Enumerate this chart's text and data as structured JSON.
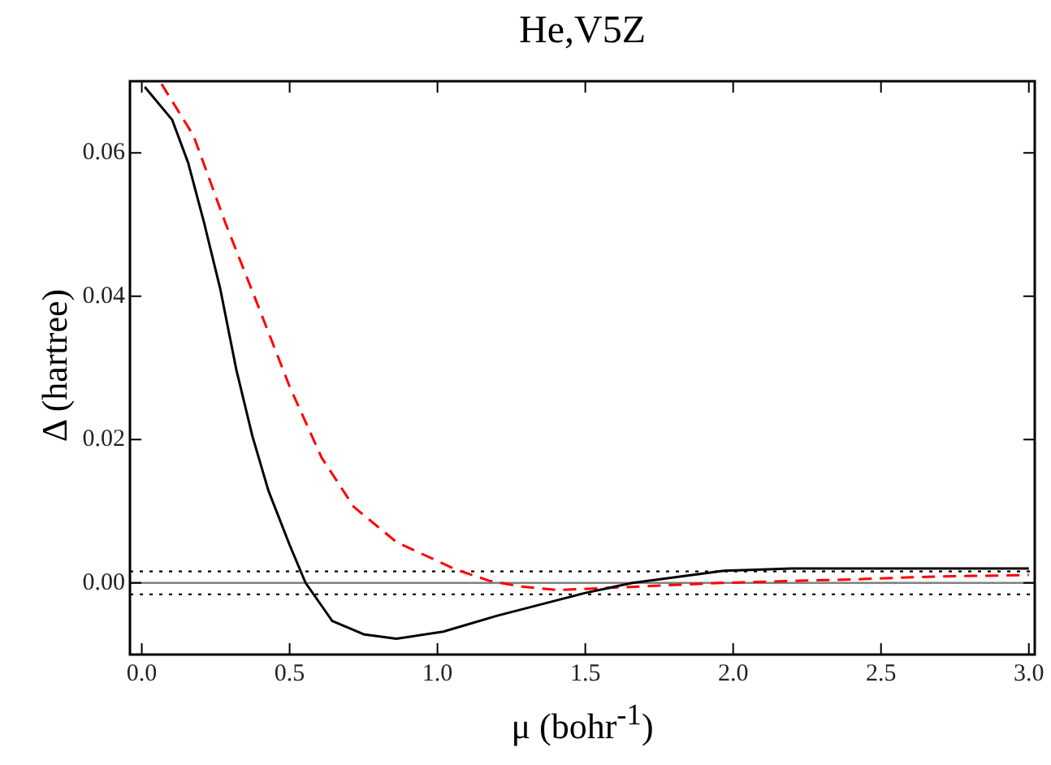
{
  "chart_data": {
    "type": "line",
    "title": "He,V5Z",
    "xlabel": "μ (bohr$^{-1}$)",
    "ylabel": "Δ (hartree)",
    "xlim": [
      -0.04,
      3.02
    ],
    "ylim": [
      -0.01,
      0.07
    ],
    "xticks": [
      {
        "value": 0,
        "label": "0.0"
      },
      {
        "value": 0.5,
        "label": "0.5"
      },
      {
        "value": 1,
        "label": "1.0"
      },
      {
        "value": 1.5,
        "label": "1.5"
      },
      {
        "value": 2,
        "label": "2.0"
      },
      {
        "value": 2.5,
        "label": "2.5"
      },
      {
        "value": 3,
        "label": "3.0"
      }
    ],
    "yticks": [
      {
        "value": 0,
        "label": "0.00"
      },
      {
        "value": 0.02,
        "label": "0.02"
      },
      {
        "value": 0.04,
        "label": "0.04"
      },
      {
        "value": 0.06,
        "label": "0.06"
      }
    ],
    "grid": false,
    "legend": false,
    "marker": "none",
    "ref_lines": [
      {
        "axis": "y",
        "value": 0,
        "color": "#808080",
        "line_style": "solid"
      },
      {
        "axis": "y",
        "value": 0.0016,
        "color": "#000000",
        "line_style": "dotted"
      },
      {
        "axis": "y",
        "value": -0.0016,
        "color": "#000000",
        "line_style": "dotted"
      }
    ],
    "series": [
      {
        "color": "#000000",
        "line_style": "solid",
        "x": [
          0.01,
          0.103,
          0.157,
          0.211,
          0.265,
          0.32,
          0.374,
          0.428,
          0.5,
          0.554,
          0.644,
          0.753,
          0.861,
          1.02,
          1.2,
          1.5,
          1.66,
          1.97,
          2.06,
          2.2,
          3.0
        ],
        "values": [
          0.0692,
          0.0646,
          0.0586,
          0.0502,
          0.0411,
          0.0297,
          0.0205,
          0.0129,
          0.0053,
          0,
          -0.0053,
          -0.0072,
          -0.0078,
          -0.0068,
          -0.0046,
          -0.0014,
          0,
          0.0017,
          0.0018,
          0.002,
          0.002
        ]
      },
      {
        "color": "#ff0000",
        "line_style": "dashed",
        "x": [
          0.067,
          0.175,
          0.283,
          0.392,
          0.5,
          0.608,
          0.717,
          0.861,
          1.06,
          1.175,
          1.28,
          1.41,
          1.63,
          1.96,
          2.41,
          2.69,
          3.0
        ],
        "values": [
          0.0696,
          0.0624,
          0.0502,
          0.0388,
          0.0274,
          0.0175,
          0.0106,
          0.0057,
          0.0019,
          0.0003,
          -0.0005,
          -0.001,
          -0.0006,
          0,
          0.0005,
          0.0009,
          0.0011
        ]
      }
    ]
  }
}
